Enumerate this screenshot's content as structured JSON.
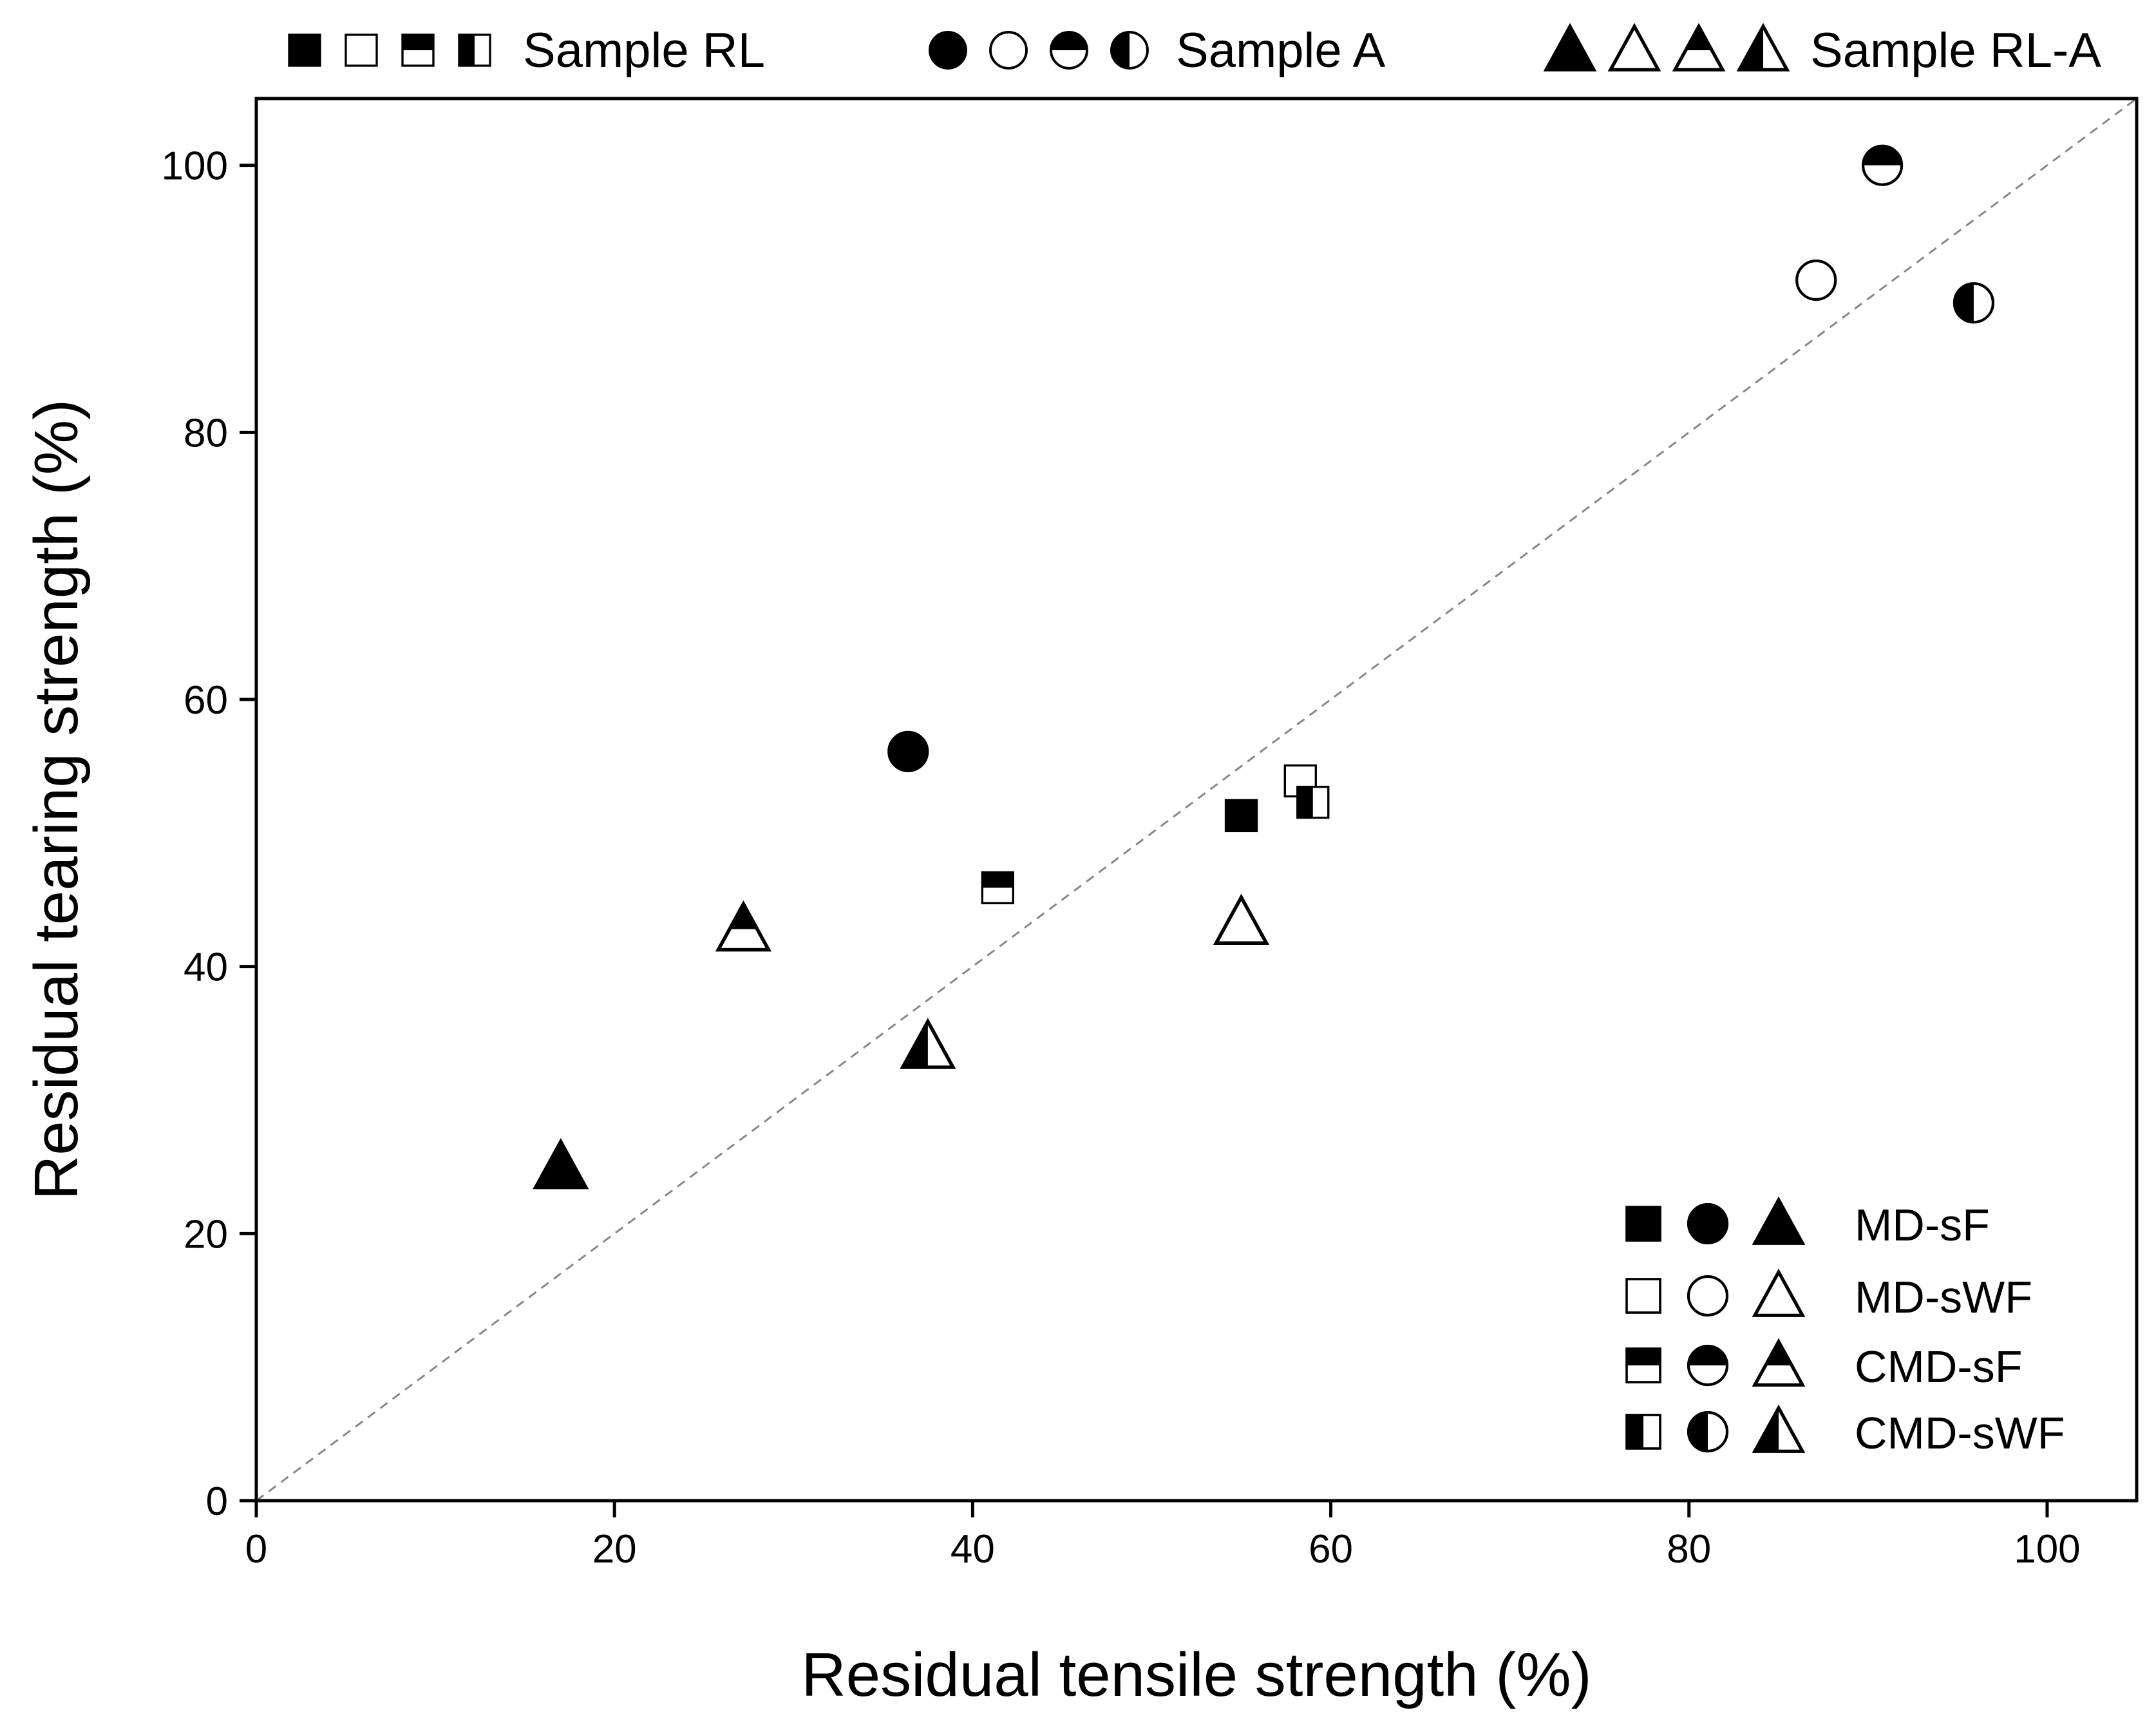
{
  "chart_data": {
    "type": "scatter",
    "title": "",
    "xlabel": "Residual tensile strength (%)",
    "ylabel": "Residual tearing strength (%)",
    "xlim": [
      0,
      105
    ],
    "ylim": [
      0,
      105
    ],
    "xticks": [
      0,
      20,
      40,
      60,
      80,
      100
    ],
    "yticks": [
      0,
      20,
      40,
      60,
      80,
      100
    ],
    "reference_line": {
      "type": "diagonal",
      "from": [
        0,
        0
      ],
      "to": [
        105,
        105
      ],
      "style": "dashed",
      "color": "#888888"
    },
    "sample_legend": [
      {
        "name": "Sample RL",
        "shape": "square"
      },
      {
        "name": "Sample A",
        "shape": "circle"
      },
      {
        "name": "Sample RL-A",
        "shape": "triangle"
      }
    ],
    "condition_legend": [
      {
        "name": "MD-sF",
        "fill": "full"
      },
      {
        "name": "MD-sWF",
        "fill": "empty"
      },
      {
        "name": "CMD-sF",
        "fill": "top"
      },
      {
        "name": "CMD-sWF",
        "fill": "left"
      }
    ],
    "legend_placement": {
      "samples": "top",
      "conditions": "bottom-right"
    },
    "series": [
      {
        "name": "Sample RL",
        "shape": "square",
        "points": [
          {
            "condition": "MD-sF",
            "fill": "full",
            "x": 55.0,
            "y": 51.3
          },
          {
            "condition": "MD-sWF",
            "fill": "empty",
            "x": 58.3,
            "y": 53.9
          },
          {
            "condition": "CMD-sF",
            "fill": "top",
            "x": 41.4,
            "y": 45.9
          },
          {
            "condition": "CMD-sWF",
            "fill": "left",
            "x": 59.0,
            "y": 52.3
          }
        ]
      },
      {
        "name": "Sample A",
        "shape": "circle",
        "points": [
          {
            "condition": "MD-sF",
            "fill": "full",
            "x": 36.4,
            "y": 56.1
          },
          {
            "condition": "MD-sWF",
            "fill": "empty",
            "x": 87.1,
            "y": 91.4
          },
          {
            "condition": "CMD-sF",
            "fill": "top",
            "x": 90.8,
            "y": 100.0
          },
          {
            "condition": "CMD-sWF",
            "fill": "left",
            "x": 95.9,
            "y": 89.7
          }
        ]
      },
      {
        "name": "Sample RL-A",
        "shape": "triangle",
        "points": [
          {
            "condition": "MD-sF",
            "fill": "full",
            "x": 17.0,
            "y": 25.0
          },
          {
            "condition": "MD-sWF",
            "fill": "empty",
            "x": 55.0,
            "y": 43.3
          },
          {
            "condition": "CMD-sF",
            "fill": "top",
            "x": 27.2,
            "y": 42.8
          },
          {
            "condition": "CMD-sWF",
            "fill": "left",
            "x": 37.5,
            "y": 34.0
          }
        ]
      }
    ]
  }
}
